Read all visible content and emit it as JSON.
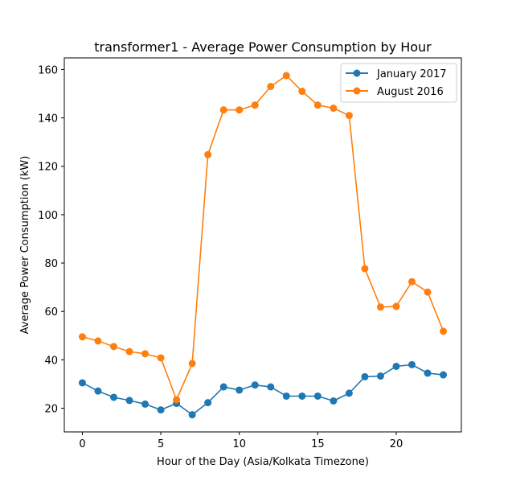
{
  "chart_data": {
    "type": "line",
    "title": "transformer1 - Average Power Consumption by Hour",
    "xlabel": "Hour of the Day (Asia/Kolkata Timezone)",
    "ylabel": "Average Power Consumption (kW)",
    "x": [
      0,
      1,
      2,
      3,
      4,
      5,
      6,
      7,
      8,
      9,
      10,
      11,
      12,
      13,
      14,
      15,
      16,
      17,
      18,
      19,
      20,
      21,
      22,
      23
    ],
    "xlim": [
      -1.15,
      24.15
    ],
    "ylim": [
      10.2,
      164.8
    ],
    "xticks": [
      0,
      5,
      10,
      15,
      20
    ],
    "yticks": [
      20,
      40,
      60,
      80,
      100,
      120,
      140,
      160
    ],
    "grid": false,
    "legend_position": "top-right",
    "series": [
      {
        "name": "January 2017",
        "color": "#1f77b4",
        "marker": "circle",
        "values": [
          30.5,
          27.1,
          24.5,
          23.2,
          21.7,
          19.3,
          22.0,
          17.3,
          22.3,
          28.8,
          27.5,
          29.6,
          28.8,
          25.0,
          25.0,
          25.0,
          23.0,
          26.2,
          33.0,
          33.3,
          37.3,
          38.0,
          34.5,
          33.8
        ]
      },
      {
        "name": "August 2016",
        "color": "#ff7f0e",
        "marker": "circle",
        "values": [
          49.5,
          47.8,
          45.5,
          43.4,
          42.5,
          40.8,
          23.5,
          38.5,
          124.8,
          143.3,
          143.3,
          145.3,
          153.0,
          157.5,
          151.0,
          145.3,
          144.0,
          141.0,
          77.7,
          61.8,
          62.1,
          72.3,
          68.0,
          51.8
        ]
      }
    ]
  }
}
